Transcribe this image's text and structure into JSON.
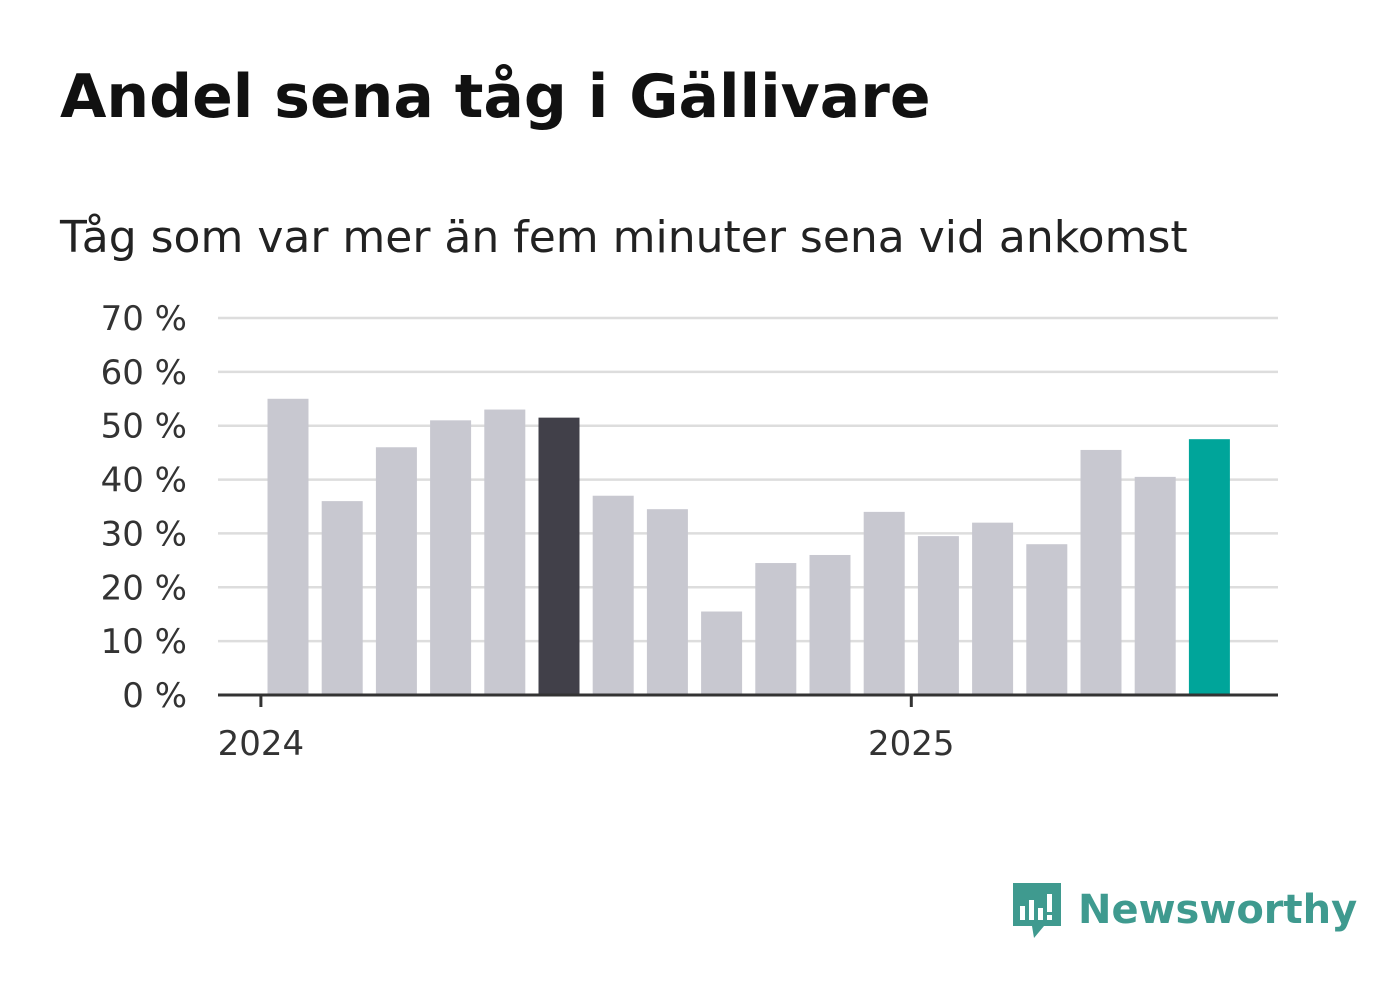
{
  "title": "Andel sena tåg i Gällivare",
  "subtitle": "Tåg som var mer än fem minuter sena vid ankomst",
  "brand": {
    "name": "Newsworthy",
    "color": "#3f9a8f",
    "icon": "bar-chart-speech-bubble-icon"
  },
  "chart_data": {
    "type": "bar",
    "unit": "%",
    "y_ticks": [
      "70 %",
      "60 %",
      "50 %",
      "40 %",
      "30 %",
      "20 %",
      "10 %",
      "0 %"
    ],
    "x_ticks": [
      {
        "label": "2024",
        "at_index": -0.5
      },
      {
        "label": "2025",
        "at_index": 11.5
      }
    ],
    "ylim": [
      0,
      70
    ],
    "grid": true,
    "values": [
      55,
      36,
      46,
      51,
      53,
      51.5,
      37,
      34.5,
      15.5,
      24.5,
      26,
      34,
      29.5,
      32,
      28,
      45.5,
      40.5,
      47.5
    ],
    "colors": {
      "default": "#c8c8d0",
      "highlight": "#414049",
      "latest": "#00a59a"
    },
    "highlight_index": 5,
    "latest_index": 17
  }
}
